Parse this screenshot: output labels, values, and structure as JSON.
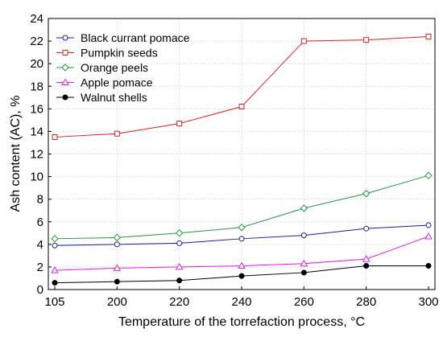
{
  "chart_data": {
    "type": "line",
    "x": [
      "105",
      "200",
      "220",
      "240",
      "260",
      "280",
      "300"
    ],
    "xlabel": "Temperature of the torrefaction process, °C",
    "ylabel": "Ash content (AC), %",
    "ylim": [
      0,
      24
    ],
    "yticks": [
      0,
      2,
      4,
      6,
      8,
      10,
      12,
      14,
      16,
      18,
      20,
      22,
      24
    ],
    "grid": true,
    "legend_position": "top-left",
    "series": [
      {
        "name": "Black currant pomace",
        "color": "#1a1aa6",
        "marker": "circle-open",
        "values": [
          3.9,
          4.0,
          4.1,
          4.5,
          4.8,
          5.4,
          5.7
        ]
      },
      {
        "name": "Pumpkin seeds",
        "color": "#e02020",
        "marker": "square-open",
        "values": [
          13.5,
          13.8,
          14.7,
          16.2,
          22.0,
          22.1,
          22.4
        ]
      },
      {
        "name": "Orange peels",
        "color": "#1f9a3a",
        "marker": "diamond-open",
        "values": [
          4.5,
          4.6,
          5.0,
          5.5,
          7.2,
          8.5,
          10.1
        ]
      },
      {
        "name": "Apple pomace",
        "color": "#e020e0",
        "marker": "triangle-open",
        "values": [
          1.7,
          1.9,
          2.0,
          2.1,
          2.3,
          2.7,
          4.7
        ]
      },
      {
        "name": "Walnut shells",
        "color": "#000000",
        "marker": "circle-filled",
        "values": [
          0.6,
          0.7,
          0.8,
          1.2,
          1.5,
          2.1,
          2.1
        ]
      }
    ]
  }
}
